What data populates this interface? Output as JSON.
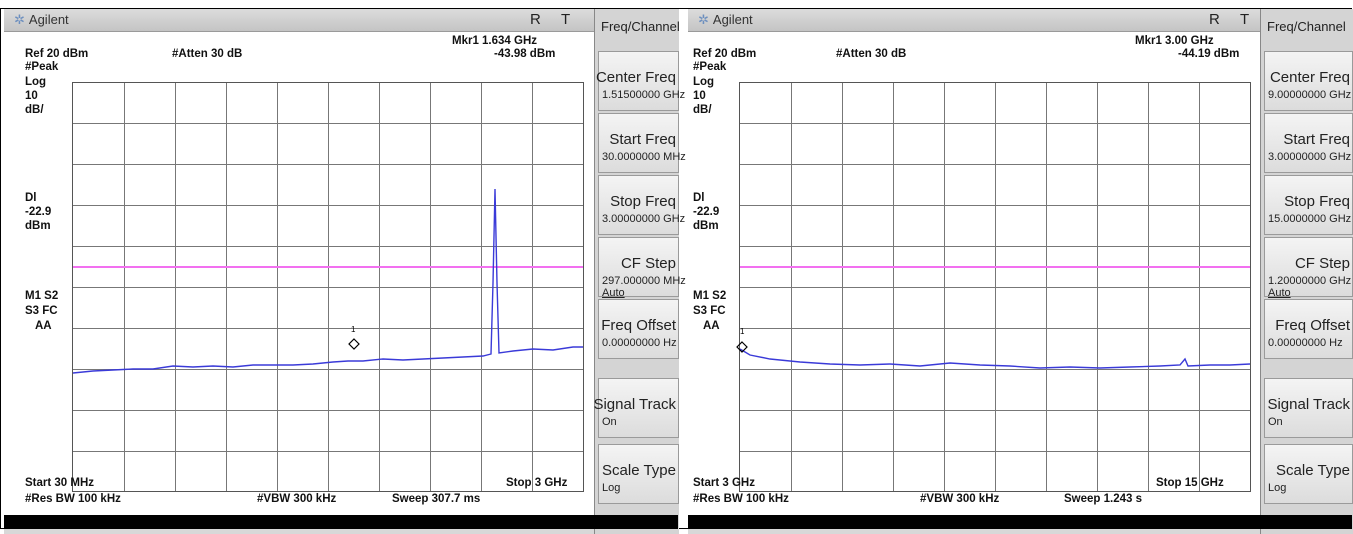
{
  "screens": [
    {
      "brand": "Agilent",
      "status_r": "R",
      "status_t": "T",
      "marker_label": "Mkr1  1.634 GHz",
      "marker_value": "-43.98 dBm",
      "ref_level": "Ref 20 dBm",
      "atten": "#Atten 30 dB",
      "left_labels": [
        "#Peak",
        "Log",
        "10",
        "dB/"
      ],
      "dl_labels": [
        "Dl",
        "-22.9",
        "dBm"
      ],
      "mode_labels": [
        "M1  S2",
        "S3  FC",
        "AA"
      ],
      "start": "Start 30 MHz",
      "stop": "Stop 3 GHz",
      "res_bw": "#Res BW 100 kHz",
      "vbw": "#VBW 300 kHz",
      "sweep": "Sweep 307.7 ms",
      "softkey_header": "Freq/Channel",
      "softkeys": [
        {
          "label": "Center Freq",
          "value": "1.51500000 GHz",
          "sub": ""
        },
        {
          "label": "Start Freq",
          "value": "30.0000000 MHz",
          "sub": ""
        },
        {
          "label": "Stop Freq",
          "value": "3.00000000 GHz",
          "sub": ""
        },
        {
          "label": "CF Step",
          "value": "297.000000 MHz",
          "sub": "Auto"
        },
        {
          "label": "Freq Offset",
          "value": "0.00000000 Hz",
          "sub": ""
        },
        {
          "label": "Signal Track",
          "value": "On",
          "sub": ""
        },
        {
          "label": "Scale Type",
          "value": "Log",
          "sub": ""
        }
      ],
      "marker_number": "1"
    },
    {
      "brand": "Agilent",
      "status_r": "R",
      "status_t": "T",
      "marker_label": "Mkr1  3.00 GHz",
      "marker_value": "-44.19 dBm",
      "ref_level": "Ref 20 dBm",
      "atten": "#Atten 30 dB",
      "left_labels": [
        "#Peak",
        "Log",
        "10",
        "dB/"
      ],
      "dl_labels": [
        "Dl",
        "-22.9",
        "dBm"
      ],
      "mode_labels": [
        "M1  S2",
        "S3  FC",
        "AA"
      ],
      "start": "Start 3 GHz",
      "stop": "Stop 15 GHz",
      "res_bw": "#Res BW 100 kHz",
      "vbw": "#VBW 300 kHz",
      "sweep": "Sweep 1.243 s",
      "softkey_header": "Freq/Channel",
      "softkeys": [
        {
          "label": "Center Freq",
          "value": "9.00000000 GHz",
          "sub": ""
        },
        {
          "label": "Start Freq",
          "value": "3.00000000 GHz",
          "sub": ""
        },
        {
          "label": "Stop Freq",
          "value": "15.0000000 GHz",
          "sub": ""
        },
        {
          "label": "CF Step",
          "value": "1.20000000 GHz",
          "sub": "Auto"
        },
        {
          "label": "Freq Offset",
          "value": "0.00000000 Hz",
          "sub": ""
        },
        {
          "label": "Signal Track",
          "value": "On",
          "sub": ""
        },
        {
          "label": "Scale Type",
          "value": "Log",
          "sub": ""
        }
      ],
      "marker_number": "1"
    }
  ],
  "colors": {
    "trace": "#3a3ad8",
    "display_line": "#f270f0",
    "grid": "#777777"
  }
}
